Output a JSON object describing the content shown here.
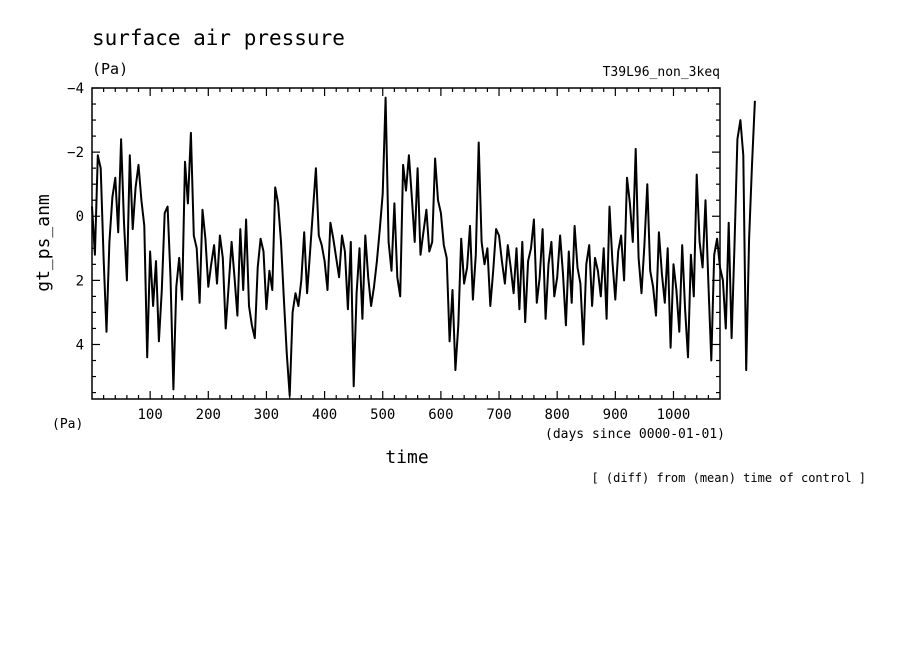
{
  "chart_data": {
    "type": "line",
    "title": "surface air pressure",
    "units_label": "(Pa)",
    "run_label": "T39L96_non_3keq",
    "ylabel": "gt_ps_anm",
    "y_units_label": "(Pa)",
    "xlabel": "time",
    "x_units_label": "(days since 0000-01-01)",
    "note": "[ (diff) from (mean) time of control ]",
    "xlim": [
      0,
      1080
    ],
    "ylim": [
      5.7,
      -4.0
    ],
    "y_inverted": true,
    "x_ticks": [
      100,
      200,
      300,
      400,
      500,
      600,
      700,
      800,
      900,
      1000
    ],
    "x_tick_labels": [
      "100",
      "200",
      "300",
      "400",
      "500",
      "600",
      "700",
      "800",
      "900",
      "1000"
    ],
    "y_ticks": [
      -4,
      -2,
      0,
      2,
      4
    ],
    "y_tick_labels": [
      "−4",
      "−2",
      "0",
      "2",
      "4"
    ],
    "series": [
      {
        "name": "gt_ps_anm",
        "x_step": 5,
        "values": [
          -0.3,
          1.2,
          -1.9,
          -1.5,
          1.3,
          3.6,
          0.8,
          -0.6,
          -1.2,
          0.5,
          -2.4,
          0.2,
          2.0,
          -1.9,
          0.4,
          -0.9,
          -1.6,
          -0.5,
          0.3,
          4.4,
          1.1,
          2.8,
          1.4,
          3.9,
          2.3,
          -0.1,
          -0.3,
          1.9,
          5.4,
          2.2,
          1.3,
          2.6,
          -1.7,
          -0.4,
          -2.6,
          0.6,
          1.0,
          2.7,
          -0.2,
          0.7,
          2.2,
          1.5,
          0.9,
          2.1,
          0.6,
          1.3,
          3.5,
          2.2,
          0.8,
          1.9,
          3.1,
          0.4,
          2.3,
          0.1,
          2.8,
          3.4,
          3.8,
          1.6,
          0.7,
          1.1,
          2.9,
          1.7,
          2.3,
          -0.9,
          -0.4,
          0.8,
          2.6,
          4.3,
          5.6,
          3.0,
          2.4,
          2.8,
          2.0,
          0.5,
          2.4,
          1.1,
          -0.2,
          -1.5,
          0.6,
          0.9,
          1.4,
          2.3,
          0.2,
          0.7,
          1.3,
          1.9,
          0.6,
          1.1,
          2.9,
          0.8,
          5.3,
          2.4,
          1.0,
          3.2,
          0.6,
          1.9,
          2.8,
          2.2,
          1.4,
          0.4,
          -0.7,
          -3.7,
          0.8,
          1.7,
          -0.4,
          1.9,
          2.5,
          -1.6,
          -0.8,
          -1.9,
          -0.6,
          0.8,
          -1.5,
          1.2,
          0.5,
          -0.2,
          1.1,
          0.8,
          -1.8,
          -0.5,
          -0.1,
          0.9,
          1.3,
          3.9,
          2.3,
          4.8,
          3.4,
          0.7,
          2.1,
          1.6,
          0.3,
          2.6,
          1.2,
          -2.3,
          0.8,
          1.5,
          1.0,
          2.8,
          1.7,
          0.4,
          0.6,
          1.4,
          2.1,
          0.9,
          1.6,
          2.4,
          1.0,
          2.9,
          0.8,
          3.3,
          1.4,
          1.0,
          0.1,
          2.7,
          1.9,
          0.4,
          3.2,
          1.5,
          0.8,
          2.5,
          1.9,
          0.6,
          1.8,
          3.4,
          1.1,
          2.7,
          0.3,
          1.6,
          2.1,
          4.0,
          1.5,
          0.9,
          2.8,
          1.3,
          1.7,
          2.5,
          1.0,
          3.2,
          -0.3,
          1.4,
          2.6,
          1.1,
          0.6,
          2.0,
          -1.2,
          -0.4,
          0.8,
          -2.1,
          1.3,
          2.4,
          0.9,
          -1.0,
          1.7,
          2.2,
          3.1,
          0.5,
          1.8,
          2.7,
          1.0,
          4.1,
          1.5,
          2.3,
          3.6,
          0.9,
          2.9,
          4.4,
          1.2,
          2.5,
          -1.3,
          0.8,
          1.6,
          -0.5,
          2.1,
          4.5,
          1.2,
          0.7,
          1.6,
          2.0,
          3.5,
          0.2,
          3.8,
          0.9,
          -2.4,
          -3.0,
          -1.9,
          4.8,
          0.7,
          -1.6,
          -3.6
        ]
      }
    ]
  }
}
